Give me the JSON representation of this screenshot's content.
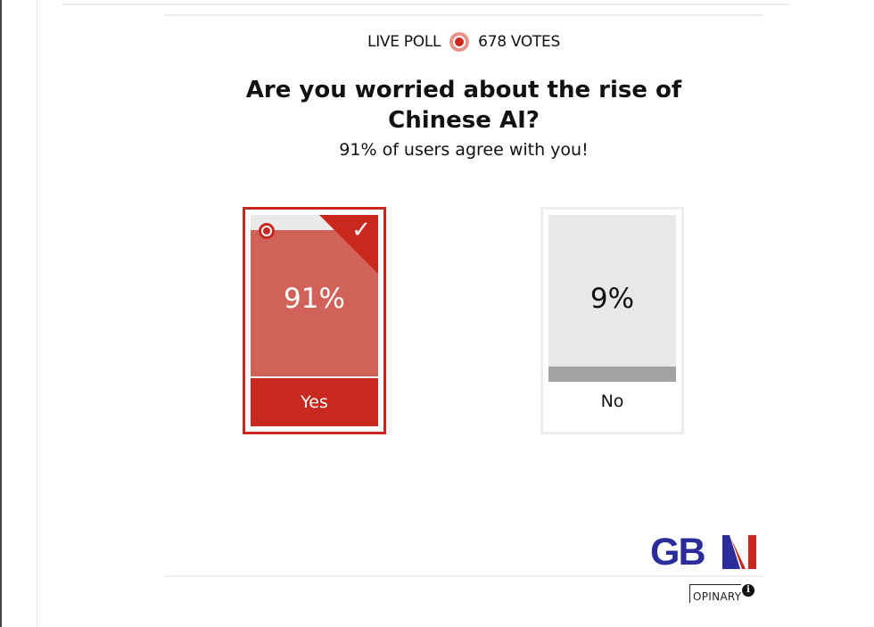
{
  "poll": {
    "live_label": "LIVE POLL",
    "votes_label": "678 VOTES",
    "question": "Are you worried about the rise of Chinese AI?",
    "agreement": "91% of users agree with you!",
    "options": [
      {
        "label": "Yes",
        "percent_label": "91%",
        "percent": 91,
        "selected": true
      },
      {
        "label": "No",
        "percent_label": "9%",
        "percent": 9,
        "selected": false
      }
    ]
  },
  "branding": {
    "logo": "GBN",
    "provider": "OPINARY",
    "info_icon": "info-icon"
  },
  "colors": {
    "accent": "#c8281e",
    "fill_selected": "#d0625a",
    "fill_other": "#a3a3a3"
  }
}
